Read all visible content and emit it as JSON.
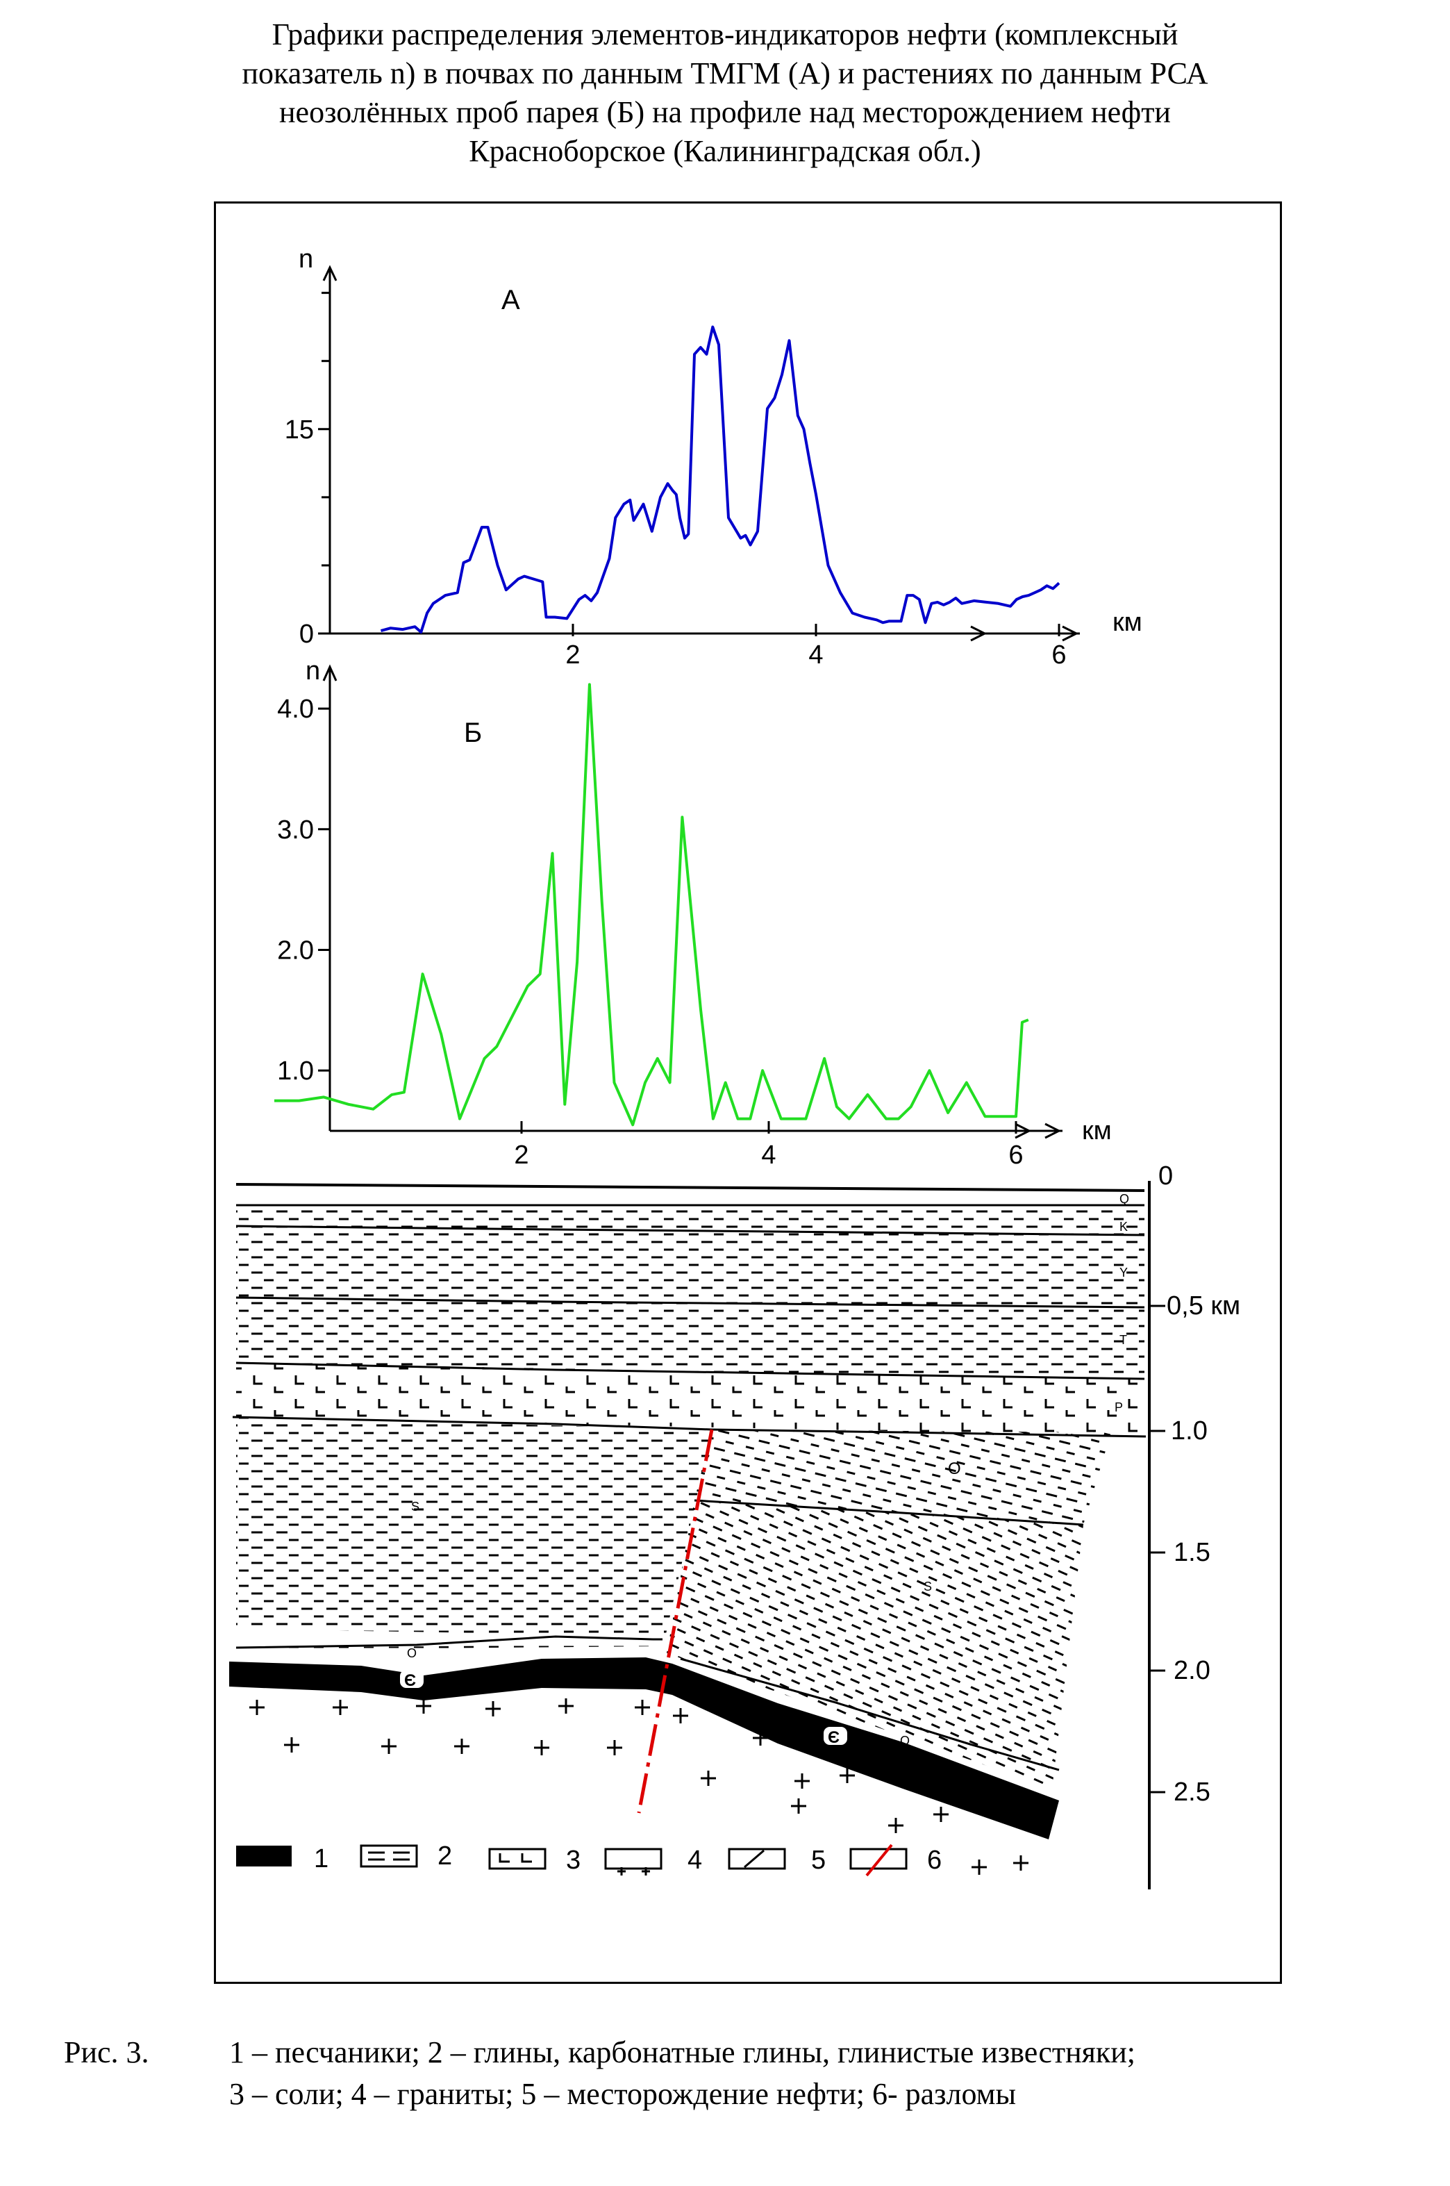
{
  "title_lines": [
    "Графики распределения элементов-индикаторов нефти (комплексный",
    "показатель n) в почвах по данным ТМГМ (А) и растениях по данным РСА",
    "неозолённых проб парея (Б) на профиле над месторождением нефти",
    "Красноборское (Калининградская обл.)"
  ],
  "chart_data": [
    {
      "type": "line",
      "panel_label": "А",
      "ylabel": "n",
      "xlabel": "км",
      "color": "#0000cc",
      "xlim": [
        0,
        6
      ],
      "ylim": [
        0,
        26
      ],
      "x_ticks": [
        "2",
        "4",
        "6"
      ],
      "y_ticks": [
        {
          "value": 0,
          "label": "0"
        },
        {
          "value": 15,
          "label": "15"
        }
      ],
      "y_minor_ticks": [
        5,
        10,
        20,
        25
      ],
      "x": [
        0.42,
        0.5,
        0.6,
        0.7,
        0.75,
        0.8,
        0.85,
        0.95,
        1.05,
        1.1,
        1.15,
        1.25,
        1.3,
        1.38,
        1.45,
        1.5,
        1.55,
        1.6,
        1.75,
        1.78,
        1.85,
        1.95,
        2.05,
        2.1,
        2.15,
        2.2,
        2.3,
        2.35,
        2.42,
        2.47,
        2.5,
        2.58,
        2.65,
        2.72,
        2.78,
        2.82,
        2.85,
        2.88,
        2.92,
        2.95,
        3.0,
        3.05,
        3.1,
        3.15,
        3.2,
        3.28,
        3.38,
        3.42,
        3.46,
        3.52,
        3.6,
        3.66,
        3.72,
        3.78,
        3.85,
        3.9,
        3.95,
        4.0,
        4.1,
        4.2,
        4.3,
        4.4,
        4.5,
        4.55,
        4.6,
        4.7,
        4.75,
        4.8,
        4.85,
        4.9,
        4.95,
        5.0,
        5.05,
        5.1,
        5.15,
        5.2,
        5.3,
        5.4,
        5.5,
        5.6,
        5.65,
        5.7,
        5.75,
        5.8,
        5.85,
        5.9,
        5.95,
        6.0
      ],
      "y": [
        0.2,
        0.4,
        0.3,
        0.5,
        0.1,
        1.5,
        2.2,
        2.8,
        3.0,
        5.2,
        5.4,
        7.8,
        7.8,
        5.0,
        3.2,
        3.6,
        4.0,
        4.2,
        3.8,
        1.2,
        1.2,
        1.1,
        2.5,
        2.8,
        2.4,
        3.0,
        5.5,
        8.5,
        9.5,
        9.8,
        8.3,
        9.5,
        7.5,
        10.0,
        11.0,
        10.5,
        10.2,
        8.5,
        7.0,
        7.3,
        20.5,
        21.0,
        20.5,
        22.5,
        21.2,
        8.5,
        7.0,
        7.2,
        6.5,
        7.5,
        16.5,
        17.3,
        19.0,
        21.5,
        16.0,
        15.0,
        12.5,
        10.2,
        5.0,
        3.0,
        1.5,
        1.2,
        1.0,
        0.8,
        0.9,
        0.9,
        2.8,
        2.8,
        2.5,
        0.8,
        2.2,
        2.3,
        2.1,
        2.3,
        2.6,
        2.2,
        2.4,
        2.3,
        2.2,
        2.0,
        2.5,
        2.7,
        2.8,
        3.0,
        3.2,
        3.5,
        3.3,
        3.7
      ]
    },
    {
      "type": "line",
      "panel_label": "Б",
      "ylabel": "n",
      "xlabel": "км",
      "color": "#22dd22",
      "xlim": [
        0,
        6
      ],
      "ylim": [
        0.5,
        4.3
      ],
      "x_ticks": [
        "2",
        "4",
        "6"
      ],
      "y_ticks": [
        {
          "value": 1.0,
          "label": "1.0"
        },
        {
          "value": 2.0,
          "label": "2.0"
        },
        {
          "value": 3.0,
          "label": "3.0"
        },
        {
          "value": 4.0,
          "label": "4.0"
        }
      ],
      "x": [
        0.0,
        0.2,
        0.4,
        0.6,
        0.8,
        0.95,
        1.05,
        1.2,
        1.35,
        1.5,
        1.6,
        1.7,
        1.8,
        1.95,
        2.05,
        2.15,
        2.25,
        2.35,
        2.45,
        2.55,
        2.65,
        2.75,
        2.9,
        3.0,
        3.1,
        3.2,
        3.3,
        3.45,
        3.55,
        3.65,
        3.75,
        3.85,
        3.95,
        4.1,
        4.2,
        4.3,
        4.45,
        4.55,
        4.65,
        4.8,
        4.95,
        5.05,
        5.15,
        5.3,
        5.45,
        5.6,
        5.75,
        5.9,
        6.0,
        6.05,
        6.1
      ],
      "y": [
        0.75,
        0.75,
        0.78,
        0.72,
        0.68,
        0.8,
        0.82,
        1.8,
        1.3,
        0.6,
        0.85,
        1.1,
        1.2,
        1.5,
        1.7,
        1.8,
        2.8,
        0.72,
        1.9,
        4.2,
        2.4,
        0.9,
        0.55,
        0.9,
        1.1,
        0.9,
        3.1,
        1.5,
        0.6,
        0.9,
        0.6,
        0.6,
        1.0,
        0.6,
        0.6,
        0.6,
        1.1,
        0.7,
        0.6,
        0.8,
        0.6,
        0.6,
        0.7,
        1.0,
        0.65,
        0.9,
        0.62,
        0.62,
        0.62,
        1.4,
        1.42
      ]
    }
  ],
  "section": {
    "depth_labels": [
      "0",
      "0,5 км",
      "1.0",
      "1.5",
      "2.0",
      "2.5"
    ],
    "layer_labels": [
      "Q",
      "K",
      "Y",
      "T",
      "P",
      "S",
      "O",
      "S",
      "O",
      "Є",
      "Є",
      "O"
    ]
  },
  "legend": {
    "items": [
      {
        "number": "1",
        "kind": "sandstone",
        "color": "#000000"
      },
      {
        "number": "2",
        "kind": "clay"
      },
      {
        "number": "3",
        "kind": "salt"
      },
      {
        "number": "4",
        "kind": "granite"
      },
      {
        "number": "5",
        "kind": "oil-field"
      },
      {
        "number": "6",
        "kind": "fault",
        "color": "#dd0000"
      }
    ]
  },
  "caption": {
    "fig": "Рис. 3.",
    "line1": "1 – песчаники; 2 – глины, карбонатные глины, глинистые известняки;",
    "line2": "3 – соли; 4 – граниты; 5 – месторождение нефти; 6- разломы"
  }
}
